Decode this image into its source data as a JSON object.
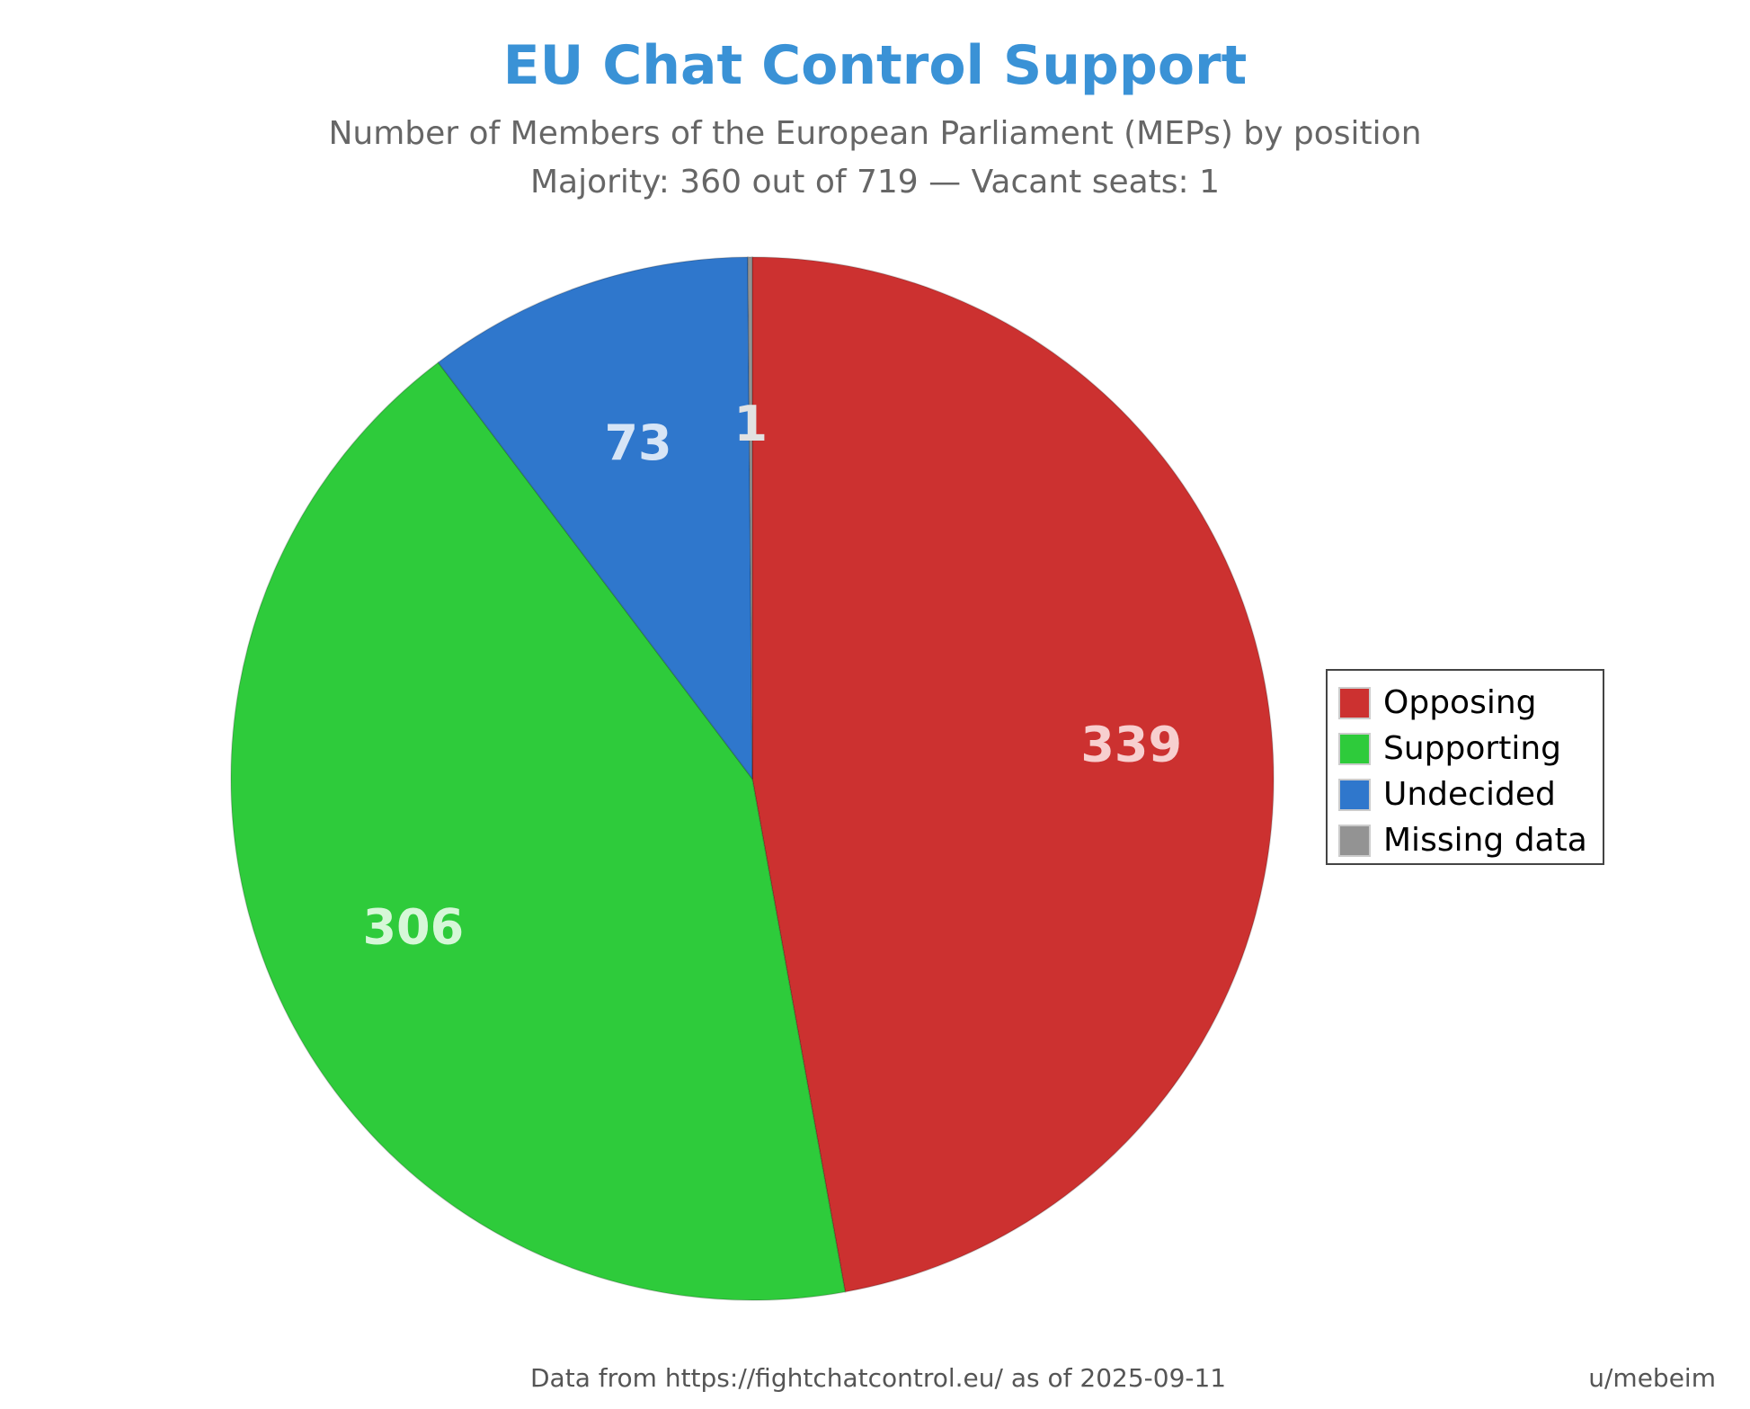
{
  "chart_data": {
    "type": "pie",
    "title": "EU Chat Control Support",
    "subtitle_lines": [
      "Number of Members of the European Parliament (MEPs) by position",
      "Majority: 360 out of 719 — Vacant seats: 1"
    ],
    "slices": [
      {
        "label": "Opposing",
        "value": 339,
        "color": "#cc3130",
        "text_color": "#f7cfcf"
      },
      {
        "label": "Supporting",
        "value": 306,
        "color": "#2ecb3b",
        "text_color": "#d6f7d8"
      },
      {
        "label": "Undecided",
        "value": 73,
        "color": "#2f77cc",
        "text_color": "#d7e5f6"
      },
      {
        "label": "Missing data",
        "value": 1,
        "color": "#939393",
        "text_color": "#e2e2e2"
      }
    ],
    "start_angle": "12 o'clock",
    "direction": "clockwise",
    "legend_position": "right",
    "source_note": "Data from https://fightchatcontrol.eu/ as of 2025-09-11",
    "author": "u/mebeim"
  }
}
